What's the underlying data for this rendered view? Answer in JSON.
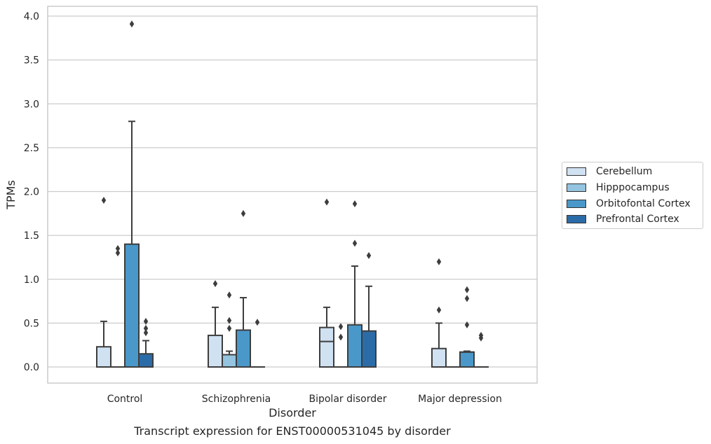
{
  "caption": "Transcript expression for ENST00000531045 by disorder",
  "chart_data": {
    "type": "box",
    "xlabel": "Disorder",
    "ylabel": "TPMs",
    "ylim": [
      -0.19,
      4.11
    ],
    "yticks": [
      "0.0",
      "0.5",
      "1.0",
      "1.5",
      "2.0",
      "2.5",
      "3.0",
      "3.5",
      "4.0"
    ],
    "ytick_values": [
      0.0,
      0.5,
      1.0,
      1.5,
      2.0,
      2.5,
      3.0,
      3.5,
      4.0
    ],
    "categories": [
      "Control",
      "Schizophrenia",
      "Bipolar disorder",
      "Major depression"
    ],
    "grid": "horizontal",
    "legend_position": "right",
    "series": [
      {
        "name": "Cerebellum",
        "color": "#d0e1f2",
        "boxes": [
          {
            "q1": 0.0,
            "median": 0.0,
            "q3": 0.23,
            "whisker_low": 0.0,
            "whisker_high": 0.52,
            "outliers": [
              1.9
            ]
          },
          {
            "q1": 0.0,
            "median": 0.0,
            "q3": 0.36,
            "whisker_low": 0.0,
            "whisker_high": 0.68,
            "outliers": [
              0.95
            ]
          },
          {
            "q1": 0.0,
            "median": 0.29,
            "q3": 0.45,
            "whisker_low": 0.0,
            "whisker_high": 0.68,
            "outliers": [
              1.88
            ]
          },
          {
            "q1": 0.0,
            "median": 0.0,
            "q3": 0.21,
            "whisker_low": 0.0,
            "whisker_high": 0.5,
            "outliers": [
              0.65,
              1.2
            ]
          }
        ]
      },
      {
        "name": "Hipppocampus",
        "color": "#94c4df",
        "boxes": [
          {
            "q1": 0.0,
            "median": 0.0,
            "q3": 0.0,
            "whisker_low": 0.0,
            "whisker_high": 0.0,
            "outliers": [
              1.3,
              1.35
            ]
          },
          {
            "q1": 0.0,
            "median": 0.0,
            "q3": 0.14,
            "whisker_low": 0.0,
            "whisker_high": 0.18,
            "outliers": [
              0.44,
              0.53,
              0.82
            ]
          },
          {
            "q1": 0.0,
            "median": 0.0,
            "q3": 0.0,
            "whisker_low": 0.0,
            "whisker_high": 0.0,
            "outliers": [
              0.34,
              0.46
            ]
          },
          {
            "q1": 0.0,
            "median": 0.0,
            "q3": 0.0,
            "whisker_low": 0.0,
            "whisker_high": 0.0,
            "outliers": []
          }
        ]
      },
      {
        "name": "Orbitofontal Cortex",
        "color": "#4a98c9",
        "boxes": [
          {
            "q1": 0.0,
            "median": 0.0,
            "q3": 1.4,
            "whisker_low": 0.0,
            "whisker_high": 2.8,
            "outliers": [
              3.91
            ]
          },
          {
            "q1": 0.0,
            "median": 0.0,
            "q3": 0.42,
            "whisker_low": 0.0,
            "whisker_high": 0.79,
            "outliers": [
              1.75
            ]
          },
          {
            "q1": 0.0,
            "median": 0.0,
            "q3": 0.48,
            "whisker_low": 0.0,
            "whisker_high": 1.15,
            "outliers": [
              1.41,
              1.86
            ]
          },
          {
            "q1": 0.0,
            "median": 0.17,
            "q3": 0.17,
            "whisker_low": 0.0,
            "whisker_high": 0.18,
            "outliers": [
              0.48,
              0.78,
              0.88
            ]
          }
        ]
      },
      {
        "name": "Prefrontal Cortex",
        "color": "#2b6ca8",
        "boxes": [
          {
            "q1": 0.0,
            "median": 0.0,
            "q3": 0.15,
            "whisker_low": 0.0,
            "whisker_high": 0.3,
            "outliers": [
              0.39,
              0.44,
              0.52
            ]
          },
          {
            "q1": 0.0,
            "median": 0.0,
            "q3": 0.0,
            "whisker_low": 0.0,
            "whisker_high": 0.0,
            "outliers": [
              0.51
            ]
          },
          {
            "q1": 0.0,
            "median": 0.0,
            "q3": 0.41,
            "whisker_low": 0.0,
            "whisker_high": 0.92,
            "outliers": [
              1.27
            ]
          },
          {
            "q1": 0.0,
            "median": 0.0,
            "q3": 0.0,
            "whisker_low": 0.0,
            "whisker_high": 0.0,
            "outliers": [
              0.33,
              0.36
            ]
          }
        ]
      }
    ]
  }
}
